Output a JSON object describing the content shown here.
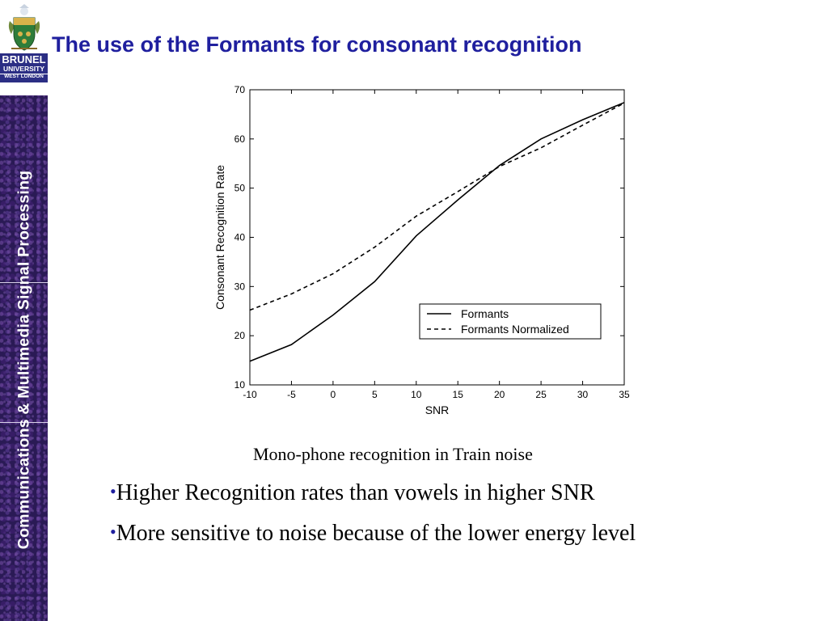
{
  "sidebar": {
    "logo": {
      "line1": "BRUNEL",
      "line2": "UNIVERSITY",
      "line3": "WEST LONDON"
    },
    "vertical_title": "Communications & Multimedia Signal Processing",
    "background_color": "#2a1a55"
  },
  "slide": {
    "title": "The use of the Formants for consonant recognition",
    "caption": "Mono-phone recognition in Train noise",
    "bullet_char": "•",
    "bullets": [
      "Higher Recognition rates than vowels in higher SNR",
      "More sensitive to noise because of the lower energy level"
    ],
    "title_color": "#1f1f9e"
  },
  "chart_data": {
    "type": "line",
    "title": "",
    "xlabel": "SNR",
    "ylabel": "Consonant Recognition Rate",
    "xlim": [
      -10,
      35
    ],
    "ylim": [
      10,
      70
    ],
    "xticks": [
      -10,
      -5,
      0,
      5,
      10,
      15,
      20,
      25,
      30,
      35
    ],
    "yticks": [
      10,
      20,
      30,
      40,
      50,
      60,
      70
    ],
    "x": [
      -10,
      -5,
      0,
      5,
      10,
      15,
      20,
      25,
      30,
      35
    ],
    "series": [
      {
        "name": "Formants",
        "style": "solid",
        "values": [
          14.8,
          18.2,
          24.2,
          31.0,
          40.3,
          47.6,
          54.6,
          60.0,
          63.9,
          67.4
        ]
      },
      {
        "name": "Formants Normalized",
        "style": "dashed",
        "values": [
          25.2,
          28.5,
          32.6,
          38.0,
          44.3,
          49.3,
          54.4,
          58.2,
          62.8,
          67.3
        ]
      }
    ],
    "legend_position": "lower-right",
    "grid": false
  }
}
